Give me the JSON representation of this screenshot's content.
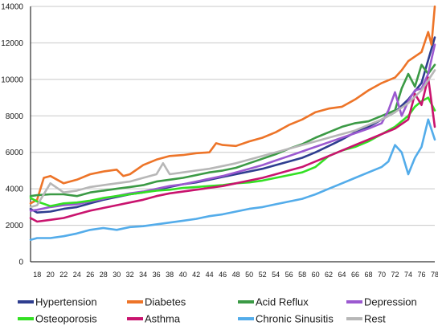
{
  "chart_data": {
    "type": "line",
    "title": "",
    "xlabel": "",
    "ylabel": "",
    "ylim": [
      0,
      14000
    ],
    "yticks": [
      0,
      2000,
      4000,
      6000,
      8000,
      10000,
      12000,
      14000
    ],
    "xlim": [
      17,
      78
    ],
    "xticks": [
      18,
      20,
      22,
      24,
      26,
      28,
      30,
      32,
      34,
      36,
      38,
      40,
      42,
      44,
      46,
      48,
      50,
      52,
      54,
      56,
      58,
      60,
      62,
      64,
      66,
      68,
      70,
      72,
      74,
      76,
      78
    ],
    "grid": "horizontal",
    "legend_position": "bottom",
    "series": [
      {
        "name": "Hypertension",
        "color": "#2e3d8f",
        "points": [
          [
            17,
            2900
          ],
          [
            18,
            2700
          ],
          [
            20,
            2750
          ],
          [
            22,
            2900
          ],
          [
            24,
            3000
          ],
          [
            26,
            3200
          ],
          [
            28,
            3400
          ],
          [
            30,
            3550
          ],
          [
            32,
            3700
          ],
          [
            34,
            3800
          ],
          [
            36,
            3950
          ],
          [
            38,
            4100
          ],
          [
            40,
            4250
          ],
          [
            42,
            4350
          ],
          [
            44,
            4500
          ],
          [
            46,
            4650
          ],
          [
            48,
            4800
          ],
          [
            50,
            4950
          ],
          [
            52,
            5100
          ],
          [
            54,
            5300
          ],
          [
            56,
            5500
          ],
          [
            58,
            5700
          ],
          [
            60,
            6000
          ],
          [
            62,
            6350
          ],
          [
            64,
            6700
          ],
          [
            66,
            7100
          ],
          [
            68,
            7400
          ],
          [
            70,
            7800
          ],
          [
            72,
            8200
          ],
          [
            74,
            8900
          ],
          [
            76,
            9800
          ],
          [
            78,
            12300
          ]
        ]
      },
      {
        "name": "Diabetes",
        "color": "#ed7428",
        "points": [
          [
            17,
            3200
          ],
          [
            18,
            3400
          ],
          [
            19,
            4600
          ],
          [
            20,
            4700
          ],
          [
            22,
            4300
          ],
          [
            24,
            4500
          ],
          [
            26,
            4800
          ],
          [
            28,
            4950
          ],
          [
            30,
            5050
          ],
          [
            31,
            4700
          ],
          [
            32,
            4800
          ],
          [
            34,
            5300
          ],
          [
            36,
            5600
          ],
          [
            38,
            5800
          ],
          [
            40,
            5850
          ],
          [
            42,
            5950
          ],
          [
            44,
            6000
          ],
          [
            45,
            6500
          ],
          [
            46,
            6400
          ],
          [
            48,
            6350
          ],
          [
            50,
            6600
          ],
          [
            52,
            6800
          ],
          [
            54,
            7100
          ],
          [
            56,
            7500
          ],
          [
            58,
            7800
          ],
          [
            60,
            8200
          ],
          [
            62,
            8400
          ],
          [
            64,
            8500
          ],
          [
            66,
            8900
          ],
          [
            68,
            9400
          ],
          [
            70,
            9800
          ],
          [
            72,
            10100
          ],
          [
            73,
            10500
          ],
          [
            74,
            11000
          ],
          [
            76,
            11500
          ],
          [
            77,
            12600
          ],
          [
            77.5,
            11900
          ],
          [
            78,
            14000
          ]
        ]
      },
      {
        "name": "Acid Reflux",
        "color": "#3b9a45",
        "points": [
          [
            17,
            3600
          ],
          [
            18,
            3650
          ],
          [
            20,
            3700
          ],
          [
            22,
            3700
          ],
          [
            24,
            3600
          ],
          [
            26,
            3800
          ],
          [
            28,
            3900
          ],
          [
            30,
            4000
          ],
          [
            32,
            4100
          ],
          [
            34,
            4200
          ],
          [
            36,
            4400
          ],
          [
            38,
            4500
          ],
          [
            40,
            4600
          ],
          [
            42,
            4750
          ],
          [
            44,
            4900
          ],
          [
            46,
            5000
          ],
          [
            48,
            5150
          ],
          [
            50,
            5400
          ],
          [
            52,
            5650
          ],
          [
            54,
            5900
          ],
          [
            56,
            6200
          ],
          [
            58,
            6450
          ],
          [
            60,
            6800
          ],
          [
            62,
            7100
          ],
          [
            64,
            7400
          ],
          [
            66,
            7600
          ],
          [
            68,
            7700
          ],
          [
            70,
            8000
          ],
          [
            72,
            8300
          ],
          [
            73,
            9500
          ],
          [
            74,
            10300
          ],
          [
            75,
            9600
          ],
          [
            76,
            10800
          ],
          [
            77,
            10300
          ],
          [
            78,
            10800
          ]
        ]
      },
      {
        "name": "Depression",
        "color": "#9b59d0",
        "points": [
          [
            17,
            2800
          ],
          [
            18,
            2850
          ],
          [
            20,
            3000
          ],
          [
            22,
            3100
          ],
          [
            24,
            3150
          ],
          [
            26,
            3300
          ],
          [
            28,
            3450
          ],
          [
            30,
            3600
          ],
          [
            32,
            3750
          ],
          [
            34,
            3850
          ],
          [
            36,
            4000
          ],
          [
            38,
            4150
          ],
          [
            40,
            4250
          ],
          [
            42,
            4400
          ],
          [
            44,
            4550
          ],
          [
            46,
            4700
          ],
          [
            48,
            4900
          ],
          [
            50,
            5100
          ],
          [
            52,
            5300
          ],
          [
            54,
            5550
          ],
          [
            56,
            5800
          ],
          [
            58,
            6050
          ],
          [
            60,
            6300
          ],
          [
            62,
            6550
          ],
          [
            64,
            6800
          ],
          [
            66,
            7050
          ],
          [
            68,
            7300
          ],
          [
            70,
            7600
          ],
          [
            71,
            8300
          ],
          [
            72,
            9300
          ],
          [
            73,
            8000
          ],
          [
            74,
            8800
          ],
          [
            75,
            9400
          ],
          [
            76,
            9500
          ],
          [
            77,
            10300
          ],
          [
            78,
            11900
          ]
        ]
      },
      {
        "name": "Osteoporosis",
        "color": "#33e023",
        "points": [
          [
            17,
            3500
          ],
          [
            18,
            3300
          ],
          [
            20,
            3050
          ],
          [
            22,
            3200
          ],
          [
            24,
            3250
          ],
          [
            26,
            3350
          ],
          [
            28,
            3500
          ],
          [
            30,
            3600
          ],
          [
            32,
            3700
          ],
          [
            34,
            3800
          ],
          [
            36,
            3900
          ],
          [
            38,
            3950
          ],
          [
            40,
            4050
          ],
          [
            42,
            4100
          ],
          [
            44,
            4150
          ],
          [
            46,
            4200
          ],
          [
            48,
            4300
          ],
          [
            50,
            4350
          ],
          [
            52,
            4450
          ],
          [
            54,
            4600
          ],
          [
            56,
            4750
          ],
          [
            58,
            4900
          ],
          [
            60,
            5200
          ],
          [
            62,
            5800
          ],
          [
            64,
            6100
          ],
          [
            66,
            6300
          ],
          [
            68,
            6600
          ],
          [
            70,
            7000
          ],
          [
            72,
            7400
          ],
          [
            74,
            8000
          ],
          [
            75,
            8500
          ],
          [
            76,
            8800
          ],
          [
            77,
            9000
          ],
          [
            78,
            8300
          ]
        ]
      },
      {
        "name": "Asthma",
        "color": "#c9136e",
        "points": [
          [
            17,
            2400
          ],
          [
            18,
            2200
          ],
          [
            20,
            2300
          ],
          [
            22,
            2400
          ],
          [
            24,
            2600
          ],
          [
            26,
            2800
          ],
          [
            28,
            2950
          ],
          [
            30,
            3100
          ],
          [
            32,
            3250
          ],
          [
            34,
            3400
          ],
          [
            36,
            3600
          ],
          [
            38,
            3750
          ],
          [
            40,
            3850
          ],
          [
            42,
            3950
          ],
          [
            44,
            4050
          ],
          [
            46,
            4150
          ],
          [
            48,
            4300
          ],
          [
            50,
            4450
          ],
          [
            52,
            4600
          ],
          [
            54,
            4800
          ],
          [
            56,
            5000
          ],
          [
            58,
            5200
          ],
          [
            60,
            5500
          ],
          [
            62,
            5800
          ],
          [
            64,
            6100
          ],
          [
            66,
            6400
          ],
          [
            68,
            6700
          ],
          [
            70,
            7000
          ],
          [
            72,
            7300
          ],
          [
            74,
            7800
          ],
          [
            75,
            9200
          ],
          [
            76,
            8600
          ],
          [
            77,
            10100
          ],
          [
            78,
            7400
          ]
        ]
      },
      {
        "name": "Chronic Sinusitis",
        "color": "#53acea",
        "points": [
          [
            17,
            1200
          ],
          [
            18,
            1300
          ],
          [
            20,
            1300
          ],
          [
            22,
            1400
          ],
          [
            24,
            1550
          ],
          [
            26,
            1750
          ],
          [
            28,
            1850
          ],
          [
            30,
            1750
          ],
          [
            32,
            1900
          ],
          [
            34,
            1950
          ],
          [
            36,
            2050
          ],
          [
            38,
            2150
          ],
          [
            40,
            2250
          ],
          [
            42,
            2350
          ],
          [
            44,
            2500
          ],
          [
            46,
            2600
          ],
          [
            48,
            2750
          ],
          [
            50,
            2900
          ],
          [
            52,
            3000
          ],
          [
            54,
            3150
          ],
          [
            56,
            3300
          ],
          [
            58,
            3450
          ],
          [
            60,
            3700
          ],
          [
            62,
            4000
          ],
          [
            64,
            4300
          ],
          [
            66,
            4600
          ],
          [
            68,
            4900
          ],
          [
            70,
            5200
          ],
          [
            71,
            5500
          ],
          [
            72,
            6400
          ],
          [
            73,
            6000
          ],
          [
            74,
            4800
          ],
          [
            75,
            5700
          ],
          [
            76,
            6300
          ],
          [
            77,
            7800
          ],
          [
            78,
            6700
          ]
        ]
      },
      {
        "name": "Rest",
        "color": "#b7b7b7",
        "points": [
          [
            17,
            3000
          ],
          [
            18,
            3100
          ],
          [
            20,
            4300
          ],
          [
            22,
            3800
          ],
          [
            24,
            3900
          ],
          [
            26,
            4100
          ],
          [
            28,
            4200
          ],
          [
            30,
            4300
          ],
          [
            32,
            4400
          ],
          [
            34,
            4600
          ],
          [
            36,
            4800
          ],
          [
            37,
            5400
          ],
          [
            38,
            4800
          ],
          [
            40,
            4900
          ],
          [
            42,
            5000
          ],
          [
            44,
            5100
          ],
          [
            46,
            5250
          ],
          [
            48,
            5400
          ],
          [
            50,
            5600
          ],
          [
            52,
            5800
          ],
          [
            54,
            6000
          ],
          [
            56,
            6200
          ],
          [
            58,
            6400
          ],
          [
            60,
            6600
          ],
          [
            62,
            6800
          ],
          [
            64,
            7000
          ],
          [
            66,
            7200
          ],
          [
            68,
            7500
          ],
          [
            70,
            7800
          ],
          [
            72,
            8200
          ],
          [
            74,
            8700
          ],
          [
            76,
            9400
          ],
          [
            78,
            10500
          ]
        ]
      }
    ]
  }
}
